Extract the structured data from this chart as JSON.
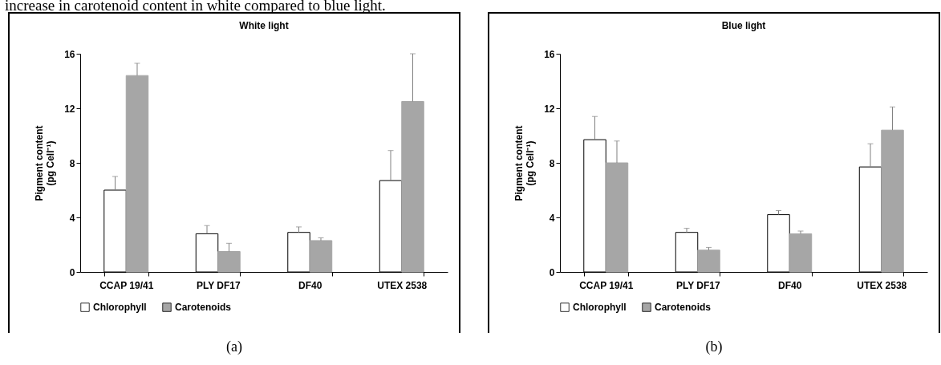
{
  "chart_data": [
    {
      "type": "bar",
      "title": "White light",
      "ylabel": "Pigment content\n(pg Cell⁻¹)",
      "categories": [
        "CCAP 19/41",
        "PLY DF17",
        "DF40",
        "UTEX 2538"
      ],
      "ylim": [
        0,
        16
      ],
      "yticks": [
        0,
        4,
        8,
        12,
        16
      ],
      "grid": false,
      "legend": "bottom",
      "series": [
        {
          "name": "Chlorophyll",
          "color": "#ffffff",
          "values": [
            6.0,
            2.8,
            2.9,
            6.7
          ],
          "errors": [
            [
              6.0,
              7.0
            ],
            [
              2.8,
              3.4
            ],
            [
              2.9,
              3.3
            ],
            [
              6.7,
              8.9
            ]
          ]
        },
        {
          "name": "Carotenoids",
          "color": "#a6a6a6",
          "values": [
            14.4,
            1.5,
            2.3,
            12.5
          ],
          "errors": [
            [
              14.4,
              15.3
            ],
            [
              1.5,
              2.1
            ],
            [
              2.3,
              2.5
            ],
            [
              12.5,
              16.0
            ]
          ]
        }
      ],
      "annotations": [
        "increase in carotenoid content in white compared to blue light.",
        "(a)"
      ]
    },
    {
      "type": "bar",
      "title": "Blue light",
      "ylabel": "Pigment content\n(pg Cell⁻¹)",
      "categories": [
        "CCAP 19/41",
        "PLY DF17",
        "DF40",
        "UTEX 2538"
      ],
      "ylim": [
        0,
        16
      ],
      "yticks": [
        0,
        4,
        8,
        12,
        16
      ],
      "grid": false,
      "legend": "bottom",
      "series": [
        {
          "name": "Chlorophyll",
          "color": "#ffffff",
          "values": [
            9.7,
            2.9,
            4.2,
            7.7
          ],
          "errors": [
            [
              9.7,
              11.4
            ],
            [
              2.9,
              3.2
            ],
            [
              4.2,
              4.5
            ],
            [
              7.7,
              9.4
            ]
          ]
        },
        {
          "name": "Carotenoids",
          "color": "#a6a6a6",
          "values": [
            8.0,
            1.6,
            2.8,
            10.4
          ],
          "errors": [
            [
              8.0,
              9.6
            ],
            [
              1.6,
              1.8
            ],
            [
              2.8,
              3.0
            ],
            [
              10.4,
              12.1
            ]
          ]
        }
      ],
      "annotations": [
        "(b)"
      ]
    }
  ]
}
